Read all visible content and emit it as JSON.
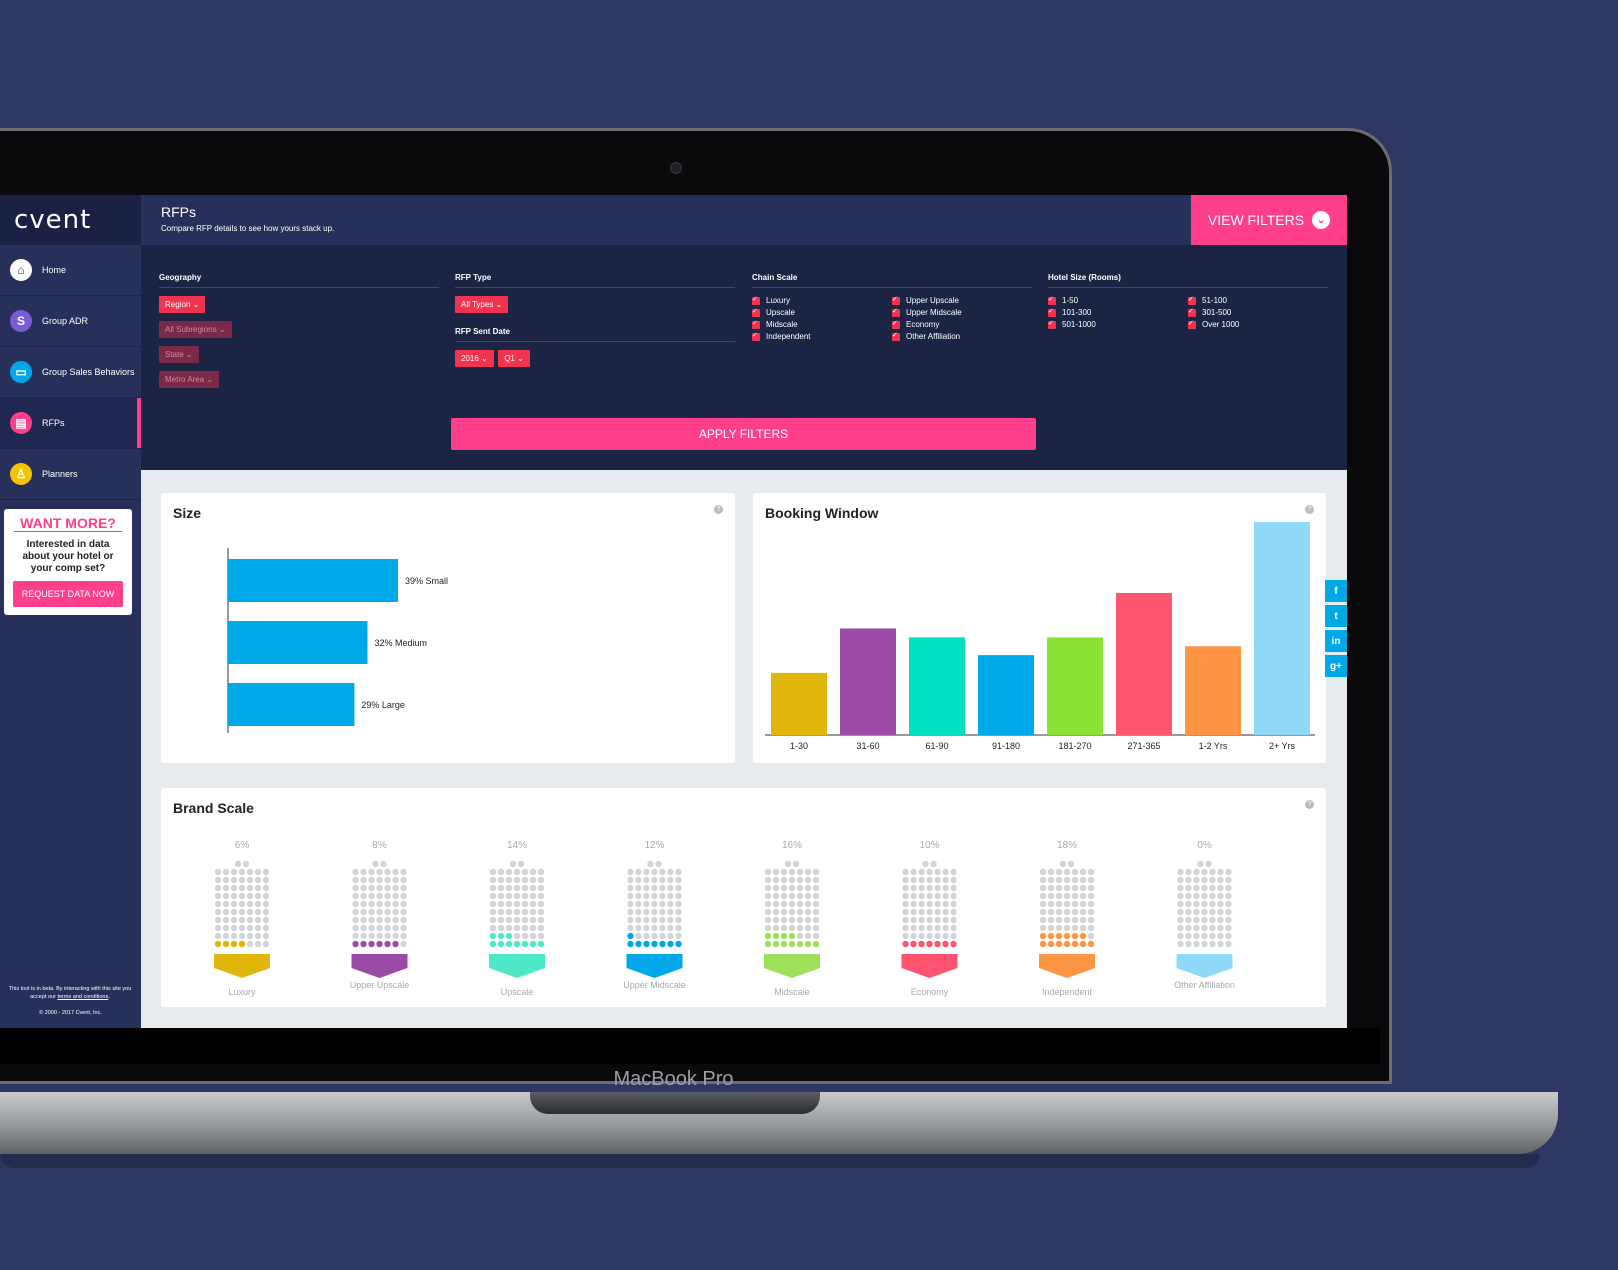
{
  "device_label": "MacBook Pro",
  "sidebar": {
    "logo": "cvent",
    "items": [
      {
        "label": "Home",
        "icon": "home-icon",
        "color": "#ffffff",
        "glyph": "⌂"
      },
      {
        "label": "Group ADR",
        "icon": "dollar-icon",
        "color": "#7b5cd6",
        "glyph": "S"
      },
      {
        "label": "Group Sales Behaviors",
        "icon": "monitor-icon",
        "color": "#00a8e8",
        "glyph": "▭"
      },
      {
        "label": "RFPs",
        "icon": "document-icon",
        "color": "#ff3f8a",
        "glyph": "▤"
      },
      {
        "label": "Planners",
        "icon": "person-icon",
        "color": "#f5c400",
        "glyph": "♙"
      }
    ],
    "want_more": {
      "title": "WANT MORE?",
      "text": "Interested in data about your hotel or your comp set?",
      "button": "REQUEST DATA NOW"
    },
    "footer_prefix": "This tool is in beta. By interacting with this site you accept our",
    "footer_link": "terms and conditions",
    "footer_suffix": ".",
    "copyright": "© 2000 - 2017 Cvent, Inc."
  },
  "header": {
    "title": "RFPs",
    "subtitle": "Compare RFP details to see how yours stack up.",
    "view_filters": "VIEW FILTERS"
  },
  "filters": {
    "geography": {
      "label": "Geography",
      "region": "Region",
      "subregion": "All Subregions",
      "state": "State",
      "metro": "Metro Area"
    },
    "rfp_type": {
      "label": "RFP Type",
      "value": "All Types"
    },
    "rfp_sent_date": {
      "label": "RFP Sent Date",
      "year": "2016",
      "quarter": "Q1"
    },
    "chain_scale": {
      "label": "Chain Scale",
      "options": [
        "Luxury",
        "Upper Upscale",
        "Upscale",
        "Upper Midscale",
        "Midscale",
        "Economy",
        "Independent",
        "Other Affiliation"
      ]
    },
    "hotel_size": {
      "label": "Hotel Size (Rooms)",
      "options": [
        "1-50",
        "51-100",
        "101-300",
        "301-500",
        "501-1000",
        "Over 1000"
      ]
    },
    "apply": "APPLY FILTERS"
  },
  "size_card": {
    "title": "Size",
    "help": "?"
  },
  "booking_card": {
    "title": "Booking Window",
    "help": "?"
  },
  "brand_card": {
    "title": "Brand Scale",
    "help": "?"
  },
  "social": [
    "f",
    "t",
    "in",
    "g+"
  ],
  "chart_data": [
    {
      "type": "bar",
      "orientation": "horizontal",
      "title": "Size",
      "categories": [
        "Small",
        "Medium",
        "Large"
      ],
      "values": [
        39,
        32,
        29
      ],
      "labels": [
        "39% Small",
        "32% Medium",
        "29% Large"
      ],
      "color": "#00a8e8"
    },
    {
      "type": "bar",
      "title": "Booking Window",
      "categories": [
        "1-30",
        "31-60",
        "61-90",
        "91-180",
        "181-270",
        "271-365",
        "1-2 Yrs",
        "2+ Yrs"
      ],
      "values": [
        7,
        12,
        11,
        9,
        11,
        16,
        10,
        24
      ],
      "colors": [
        "#e0b60b",
        "#9b4aa5",
        "#00e0c0",
        "#00a8e8",
        "#8ae234",
        "#ff5470",
        "#ff9445",
        "#8fd8f8"
      ]
    },
    {
      "type": "bar",
      "title": "Brand Scale",
      "categories": [
        "Luxury",
        "Upper Upscale",
        "Upscale",
        "Upper Midscale",
        "Midscale",
        "Economy",
        "Independent",
        "Other Affiliation"
      ],
      "values": [
        6,
        8,
        14,
        12,
        16,
        10,
        18,
        0
      ],
      "labels": [
        "6%",
        "8%",
        "14%",
        "12%",
        "16%",
        "10%",
        "18%",
        "0%"
      ],
      "colors": [
        "#e0b60b",
        "#9b4aa5",
        "#4ee8c8",
        "#00a8e8",
        "#9de05a",
        "#ff5470",
        "#ff9445",
        "#8fd8f8"
      ]
    }
  ]
}
